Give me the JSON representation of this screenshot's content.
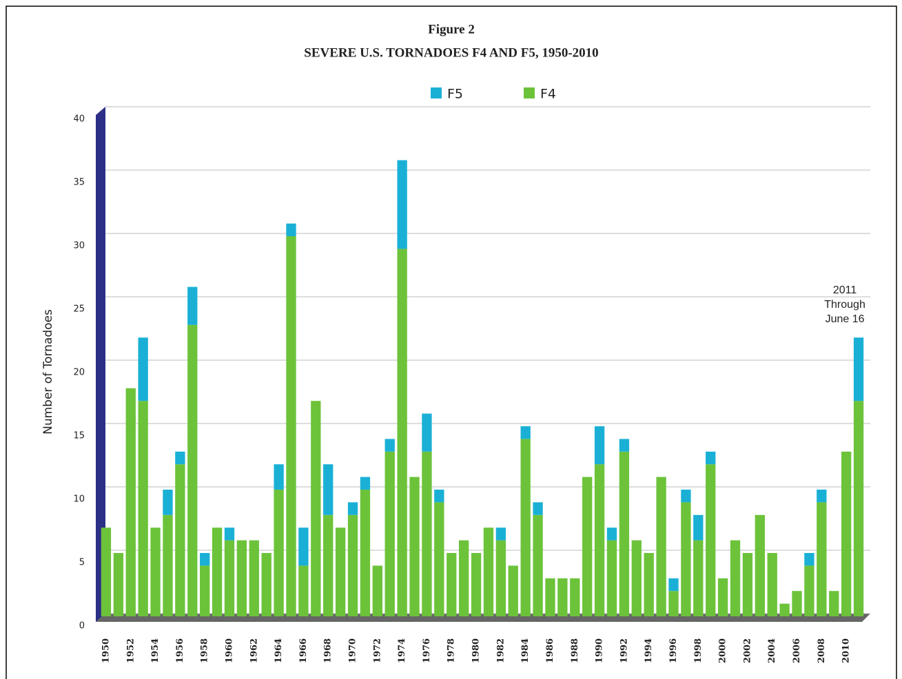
{
  "chart_data": {
    "type": "stacked_bar",
    "title": "Figure 2",
    "subtitle": "SEVERE U.S. TORNADOES F4 AND F5, 1950-2010",
    "y_label": "Number of Tornadoes",
    "annotation": [
      "2011",
      "Through",
      "June 16"
    ],
    "categories": [
      "1950",
      null,
      "1952",
      null,
      "1954",
      null,
      "1956",
      null,
      "1958",
      null,
      "1960",
      null,
      "1962",
      null,
      "1964",
      null,
      "1966",
      null,
      "1968",
      null,
      "1970",
      null,
      "1972",
      null,
      "1974",
      null,
      "1976",
      null,
      "1978",
      null,
      "1980",
      null,
      "1982",
      null,
      "1984",
      null,
      "1986",
      null,
      "1988",
      null,
      "1990",
      null,
      "1992",
      null,
      "1994",
      null,
      "1996",
      null,
      "1998",
      null,
      "2000",
      null,
      "2002",
      null,
      "2004",
      null,
      "2006",
      null,
      "2008",
      null,
      "2010",
      null
    ],
    "series": [
      {
        "name": "F4",
        "color": "#6cc33a",
        "values": [
          7,
          5,
          18,
          17,
          7,
          8,
          12,
          23,
          4,
          7,
          6,
          6,
          6,
          5,
          10,
          30,
          4,
          17,
          8,
          7,
          8,
          10,
          4,
          13,
          29,
          11,
          13,
          9,
          5,
          6,
          5,
          7,
          6,
          4,
          14,
          8,
          3,
          3,
          3,
          11,
          12,
          6,
          13,
          6,
          5,
          11,
          2,
          9,
          6,
          12,
          3,
          6,
          5,
          8,
          5,
          1,
          2,
          4,
          9,
          2,
          13,
          17
        ]
      },
      {
        "name": "F5",
        "color": "#1ab0d6",
        "values": [
          0,
          0,
          0,
          5,
          0,
          2,
          1,
          3,
          1,
          0,
          1,
          0,
          0,
          0,
          2,
          1,
          3,
          0,
          4,
          0,
          1,
          1,
          0,
          1,
          7,
          0,
          3,
          1,
          0,
          0,
          0,
          0,
          1,
          0,
          1,
          1,
          0,
          0,
          0,
          0,
          3,
          1,
          1,
          0,
          0,
          0,
          1,
          1,
          2,
          1,
          0,
          0,
          0,
          0,
          0,
          0,
          0,
          1,
          1,
          0,
          0,
          5
        ]
      }
    ],
    "ylim": [
      0,
      40
    ],
    "yticks": [
      0,
      5,
      10,
      15,
      20,
      25,
      30,
      35,
      40
    ],
    "grid": true
  }
}
